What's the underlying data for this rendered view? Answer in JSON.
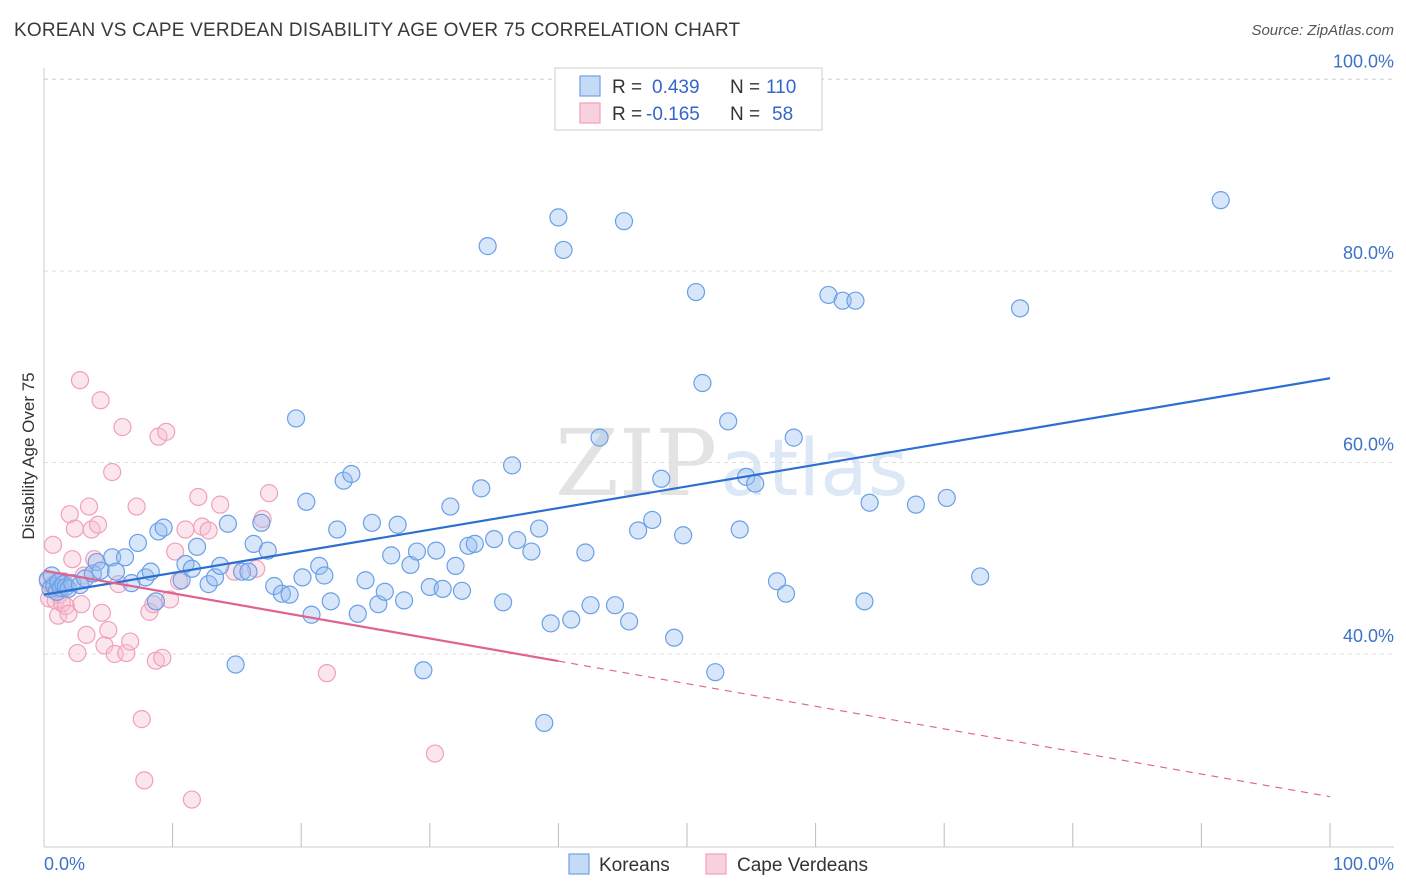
{
  "title": "KOREAN VS CAPE VERDEAN DISABILITY AGE OVER 75 CORRELATION CHART",
  "source": "Source: ZipAtlas.com",
  "watermark": {
    "zip": "ZIP",
    "atlas": "atlas"
  },
  "colors": {
    "korean": "#6aa0e8",
    "korean_line": "#2d6fd1",
    "cape": "#f0a0bb",
    "cape_line": "#e0628f",
    "grid": "#dddddd",
    "tick_text": "#3d72c7"
  },
  "legend": {
    "r_label": "R =",
    "n_label": "N =",
    "entries": [
      {
        "r": "0.439",
        "n": "110"
      },
      {
        "r": "-0.165",
        "n": "58"
      }
    ]
  },
  "chart_data": {
    "type": "scatter",
    "title": "KOREAN VS CAPE VERDEAN DISABILITY AGE OVER 75 CORRELATION CHART",
    "xlabel": "",
    "ylabel": "Disability Age Over 75",
    "xlim": [
      0,
      100
    ],
    "ylim": [
      20,
      104
    ],
    "x_tick_labels": [
      "0.0%",
      "100.0%"
    ],
    "y_ticks": [
      40,
      60,
      80,
      100
    ],
    "y_tick_labels": [
      "40.0%",
      "60.0%",
      "80.0%",
      "100.0%"
    ],
    "legend_position": "top-center",
    "bottom_legend": [
      "Koreans",
      "Cape Verdeans"
    ],
    "series": [
      {
        "name": "Koreans",
        "trend": {
          "x": [
            0,
            100
          ],
          "y": [
            46.2,
            68.8
          ],
          "dashed_from": null
        },
        "points": [
          [
            0.3,
            47.8
          ],
          [
            0.5,
            46.8
          ],
          [
            0.6,
            48.2
          ],
          [
            0.8,
            47.1
          ],
          [
            1.0,
            46.5
          ],
          [
            1.1,
            47.5
          ],
          [
            1.3,
            46.9
          ],
          [
            1.5,
            47.3
          ],
          [
            1.7,
            47.0
          ],
          [
            1.9,
            46.8
          ],
          [
            2.2,
            47.4
          ],
          [
            2.8,
            47.2
          ],
          [
            3.2,
            47.9
          ],
          [
            3.8,
            48.4
          ],
          [
            4.1,
            49.6
          ],
          [
            4.4,
            48.7
          ],
          [
            5.3,
            50.1
          ],
          [
            5.6,
            48.6
          ],
          [
            6.3,
            50.1
          ],
          [
            6.8,
            47.4
          ],
          [
            7.3,
            51.6
          ],
          [
            7.9,
            48.0
          ],
          [
            8.3,
            48.6
          ],
          [
            8.7,
            45.5
          ],
          [
            8.9,
            52.8
          ],
          [
            9.3,
            53.2
          ],
          [
            10.7,
            47.7
          ],
          [
            11.0,
            49.4
          ],
          [
            11.5,
            48.9
          ],
          [
            11.9,
            51.2
          ],
          [
            12.8,
            47.3
          ],
          [
            13.3,
            48.0
          ],
          [
            13.7,
            49.2
          ],
          [
            14.3,
            53.6
          ],
          [
            14.9,
            38.9
          ],
          [
            15.4,
            48.6
          ],
          [
            15.9,
            48.6
          ],
          [
            16.3,
            51.5
          ],
          [
            16.9,
            53.7
          ],
          [
            17.4,
            50.8
          ],
          [
            17.9,
            47.1
          ],
          [
            18.5,
            46.3
          ],
          [
            19.1,
            46.2
          ],
          [
            19.6,
            64.6
          ],
          [
            20.1,
            48.0
          ],
          [
            20.4,
            55.9
          ],
          [
            20.8,
            44.1
          ],
          [
            21.4,
            49.2
          ],
          [
            21.8,
            48.2
          ],
          [
            22.3,
            45.5
          ],
          [
            22.8,
            53.0
          ],
          [
            23.3,
            58.1
          ],
          [
            23.9,
            58.8
          ],
          [
            24.4,
            44.2
          ],
          [
            25.0,
            47.7
          ],
          [
            25.5,
            53.7
          ],
          [
            26.0,
            45.2
          ],
          [
            26.5,
            46.5
          ],
          [
            27.0,
            50.3
          ],
          [
            27.5,
            53.5
          ],
          [
            28.0,
            45.6
          ],
          [
            28.5,
            49.3
          ],
          [
            29.0,
            50.7
          ],
          [
            29.5,
            38.3
          ],
          [
            30.0,
            47.0
          ],
          [
            30.5,
            50.8
          ],
          [
            31.0,
            46.8
          ],
          [
            31.6,
            55.4
          ],
          [
            32.0,
            49.2
          ],
          [
            32.5,
            46.6
          ],
          [
            33.0,
            51.3
          ],
          [
            33.5,
            51.5
          ],
          [
            34.0,
            57.3
          ],
          [
            34.5,
            82.6
          ],
          [
            35.0,
            52.0
          ],
          [
            35.7,
            45.4
          ],
          [
            36.4,
            59.7
          ],
          [
            36.8,
            51.9
          ],
          [
            37.9,
            50.7
          ],
          [
            38.5,
            53.1
          ],
          [
            38.9,
            32.8
          ],
          [
            39.4,
            43.2
          ],
          [
            40.0,
            85.6
          ],
          [
            40.4,
            82.2
          ],
          [
            41.0,
            43.6
          ],
          [
            42.1,
            50.6
          ],
          [
            42.5,
            45.1
          ],
          [
            43.2,
            62.6
          ],
          [
            45.1,
            85.2
          ],
          [
            44.4,
            45.1
          ],
          [
            45.5,
            43.4
          ],
          [
            46.2,
            52.9
          ],
          [
            47.3,
            54.0
          ],
          [
            48.0,
            58.3
          ],
          [
            49.0,
            41.7
          ],
          [
            49.7,
            52.4
          ],
          [
            50.7,
            77.8
          ],
          [
            51.2,
            68.3
          ],
          [
            52.2,
            38.1
          ],
          [
            53.2,
            64.3
          ],
          [
            54.1,
            53.0
          ],
          [
            54.6,
            58.5
          ],
          [
            55.3,
            57.8
          ],
          [
            57.0,
            47.6
          ],
          [
            57.7,
            46.3
          ],
          [
            58.3,
            62.6
          ],
          [
            61.0,
            77.5
          ],
          [
            62.1,
            76.9
          ],
          [
            63.1,
            76.9
          ],
          [
            63.8,
            45.5
          ],
          [
            64.2,
            55.8
          ],
          [
            67.8,
            55.6
          ],
          [
            70.2,
            56.3
          ],
          [
            72.8,
            48.1
          ],
          [
            75.9,
            76.1
          ],
          [
            91.5,
            87.4
          ]
        ]
      },
      {
        "name": "Cape Verdeans",
        "trend": {
          "x": [
            0,
            100
          ],
          "y": [
            48.7,
            25.1
          ],
          "dashed_from": 40
        },
        "points": [
          [
            0.3,
            47.6
          ],
          [
            0.4,
            45.8
          ],
          [
            0.6,
            47.2
          ],
          [
            0.7,
            51.4
          ],
          [
            0.9,
            45.6
          ],
          [
            1.1,
            44.0
          ],
          [
            1.2,
            46.2
          ],
          [
            1.4,
            45.3
          ],
          [
            1.5,
            47.6
          ],
          [
            1.7,
            45.0
          ],
          [
            1.9,
            44.2
          ],
          [
            2.0,
            54.6
          ],
          [
            2.2,
            49.9
          ],
          [
            2.4,
            53.1
          ],
          [
            2.6,
            40.1
          ],
          [
            2.9,
            45.2
          ],
          [
            3.1,
            48.2
          ],
          [
            3.3,
            42.0
          ],
          [
            3.5,
            55.4
          ],
          [
            3.7,
            53.0
          ],
          [
            3.9,
            49.9
          ],
          [
            4.2,
            53.5
          ],
          [
            4.5,
            44.3
          ],
          [
            4.7,
            40.9
          ],
          [
            5.0,
            42.5
          ],
          [
            5.3,
            59.0
          ],
          [
            5.5,
            40.0
          ],
          [
            5.8,
            47.3
          ],
          [
            6.1,
            63.7
          ],
          [
            6.4,
            40.1
          ],
          [
            6.7,
            41.3
          ],
          [
            7.2,
            55.4
          ],
          [
            7.6,
            33.2
          ],
          [
            7.8,
            26.8
          ],
          [
            8.2,
            44.4
          ],
          [
            8.5,
            45.2
          ],
          [
            8.7,
            39.3
          ],
          [
            8.9,
            62.7
          ],
          [
            9.2,
            39.6
          ],
          [
            9.5,
            63.2
          ],
          [
            9.8,
            45.7
          ],
          [
            10.2,
            50.7
          ],
          [
            10.5,
            47.6
          ],
          [
            11.0,
            53.0
          ],
          [
            11.5,
            24.8
          ],
          [
            12.0,
            56.4
          ],
          [
            12.3,
            53.3
          ],
          [
            12.8,
            52.9
          ],
          [
            13.7,
            55.6
          ],
          [
            14.8,
            48.6
          ],
          [
            16.5,
            48.9
          ],
          [
            17.0,
            54.1
          ],
          [
            17.5,
            56.8
          ],
          [
            2.8,
            68.6
          ],
          [
            4.4,
            66.5
          ],
          [
            22.0,
            38.0
          ],
          [
            30.4,
            29.6
          ],
          [
            1.0,
            46.8
          ]
        ]
      }
    ]
  }
}
